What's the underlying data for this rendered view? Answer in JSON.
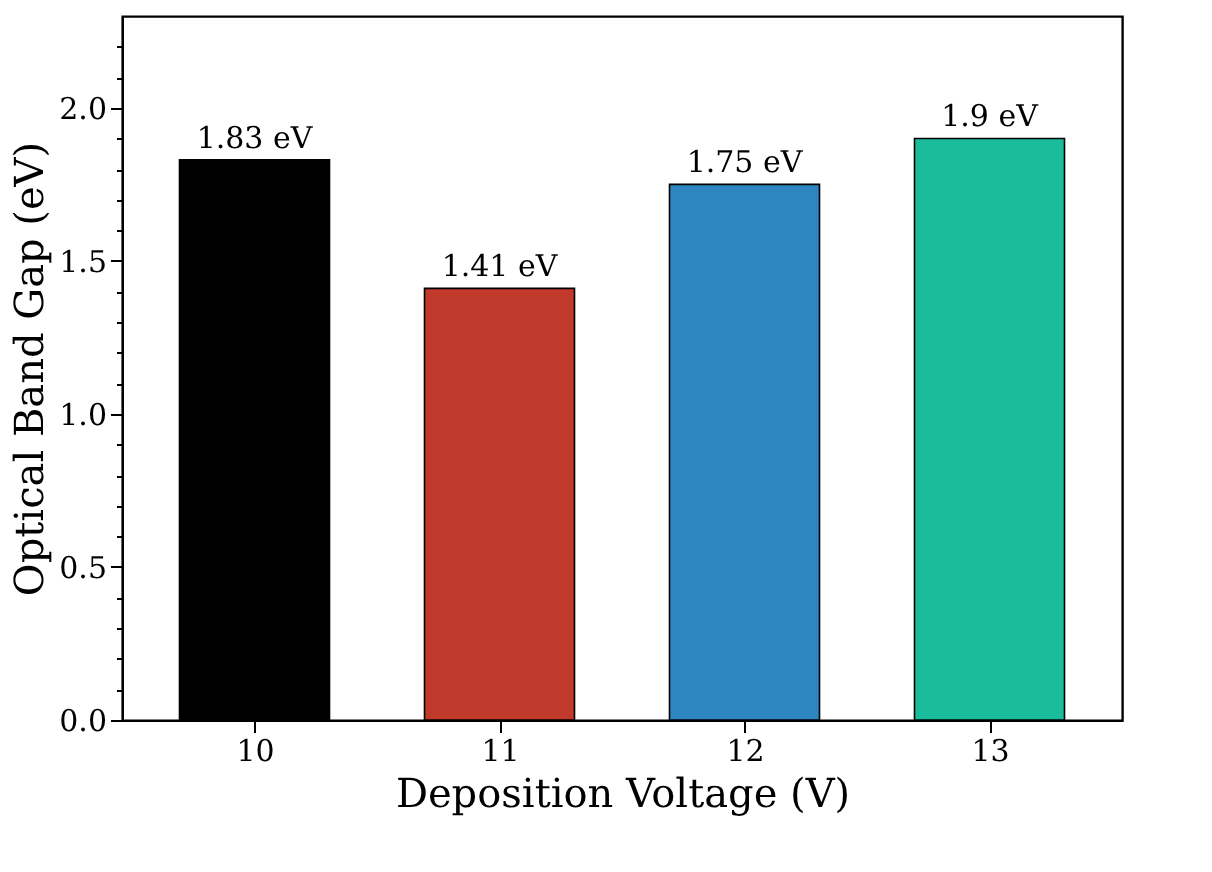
{
  "chart_data": {
    "type": "bar",
    "xlabel": "Deposition Voltage (V)",
    "ylabel": "Optical Band Gap (eV)",
    "categories": [
      "10",
      "11",
      "12",
      "13"
    ],
    "values": [
      1.83,
      1.41,
      1.75,
      1.9
    ],
    "colors": [
      "#000000",
      "#c0392b",
      "#2e86c1",
      "#1abc9c"
    ],
    "value_labels": [
      "1.83 eV",
      "1.41 eV",
      "1.75 eV",
      "1.9 eV"
    ],
    "ylim": [
      0,
      2.3
    ],
    "yticks": [
      {
        "value": 0,
        "label": "0.0"
      },
      {
        "value": 0.1,
        "label": null
      },
      {
        "value": 0.2,
        "label": null
      },
      {
        "value": 0.3,
        "label": null
      },
      {
        "value": 0.4,
        "label": null
      },
      {
        "value": 0.5,
        "label": "0.5"
      },
      {
        "value": 0.6,
        "label": null
      },
      {
        "value": 0.7,
        "label": null
      },
      {
        "value": 0.8,
        "label": null
      },
      {
        "value": 0.9,
        "label": null
      },
      {
        "value": 1.0,
        "label": "1.0"
      },
      {
        "value": 1.1,
        "label": null
      },
      {
        "value": 1.2,
        "label": null
      },
      {
        "value": 1.3,
        "label": null
      },
      {
        "value": 1.4,
        "label": null
      },
      {
        "value": 1.5,
        "label": "1.5"
      },
      {
        "value": 1.6,
        "label": null
      },
      {
        "value": 1.7,
        "label": null
      },
      {
        "value": 1.8,
        "label": null
      },
      {
        "value": 1.9,
        "label": null
      },
      {
        "value": 2.0,
        "label": "2.0"
      },
      {
        "value": 2.1,
        "label": null
      },
      {
        "value": 2.2,
        "label": null
      }
    ],
    "grid": false
  }
}
